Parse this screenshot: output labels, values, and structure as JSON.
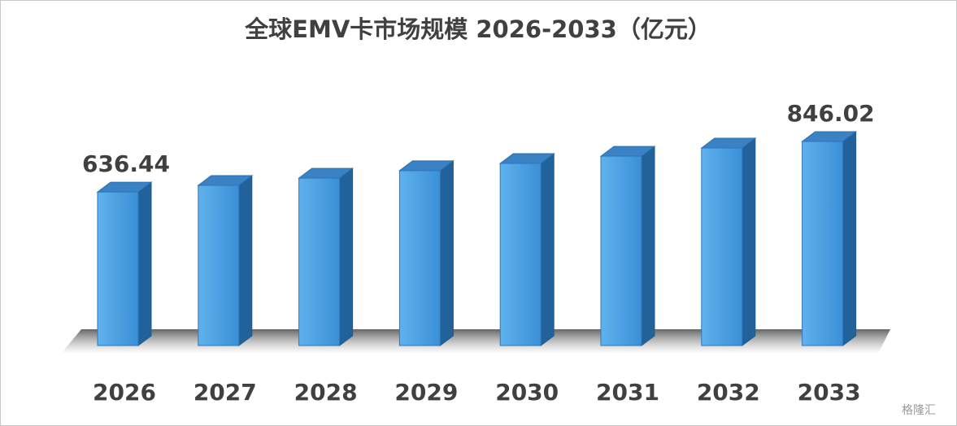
{
  "chart_data": {
    "type": "bar3d",
    "title": "全球EMV卡市场规模 2026-2033（亿元）",
    "categories": [
      "2026",
      "2027",
      "2028",
      "2029",
      "2030",
      "2031",
      "2032",
      "2033"
    ],
    "values": [
      636.44,
      664,
      694,
      725,
      755,
      785,
      819,
      846.02
    ],
    "value_labels": [
      "636.44",
      null,
      null,
      null,
      null,
      null,
      null,
      "846.02"
    ],
    "color": "#4a9ee0",
    "watermark": "格隆汇"
  }
}
